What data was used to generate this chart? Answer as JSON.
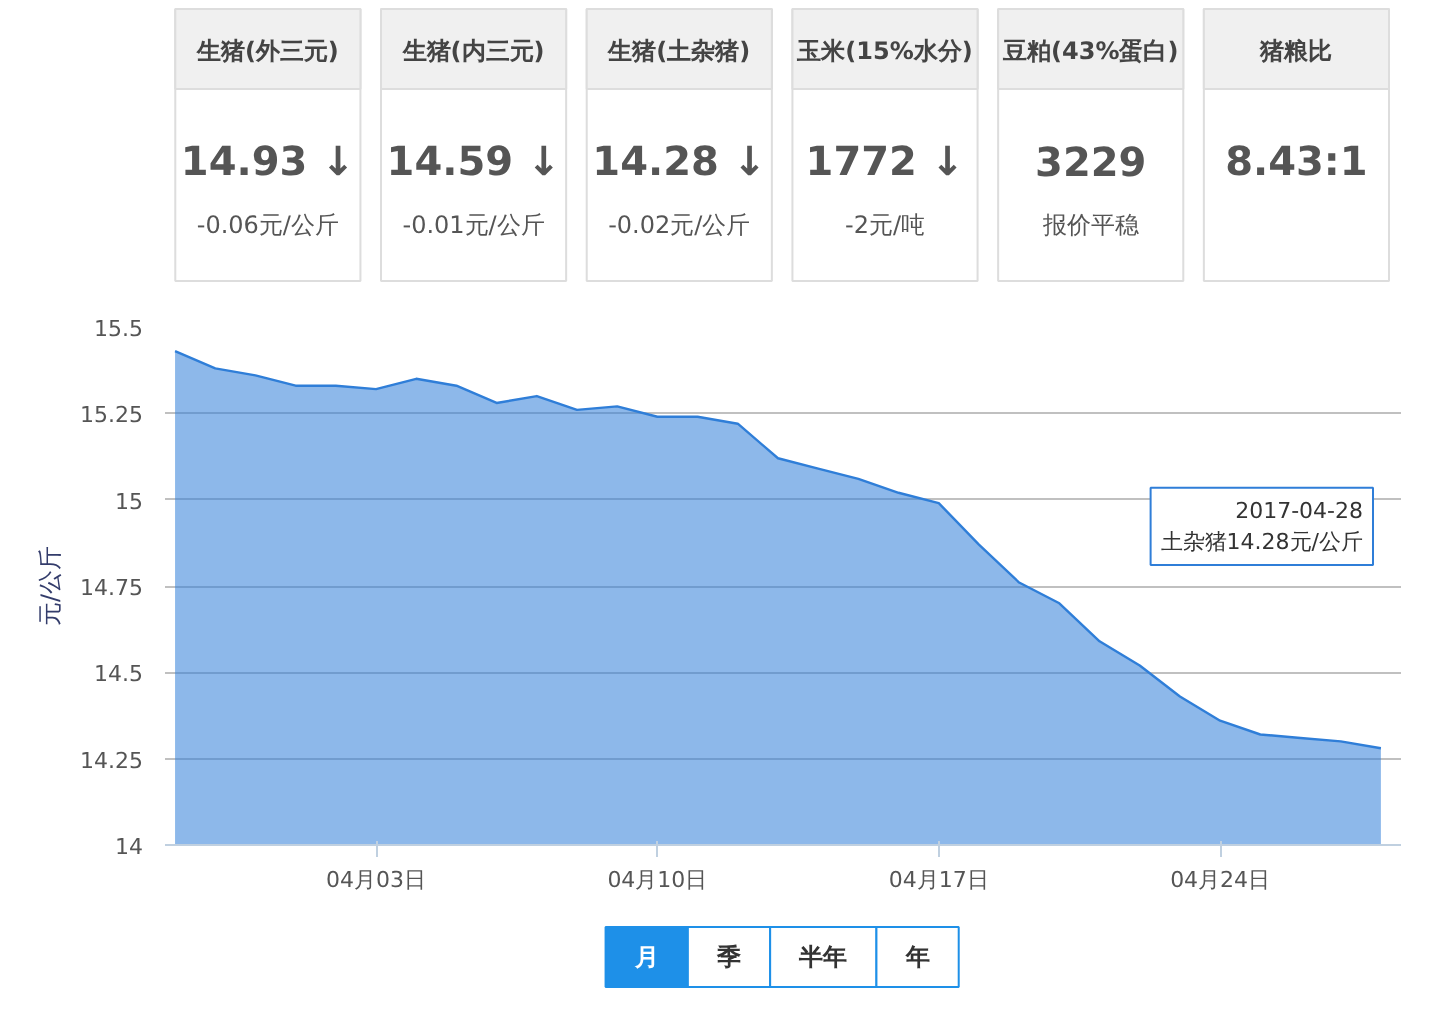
{
  "chart_data": [
    {
      "type": "other",
      "categories": [
        "生猪(外三元)",
        "生猪(内三元)",
        "生猪(土杂猪)",
        "玉米(15%水分)",
        "豆粕(43%蛋白)",
        "猪粮比"
      ],
      "value_labels": [
        "14.93 ↓",
        "14.59 ↓",
        "14.28 ↓",
        "1772 ↓",
        "3229",
        "8.43:1"
      ],
      "annotations": [
        "-0.06元/公斤",
        "-0.01元/公斤",
        "-0.02元/公斤",
        "-2元/吨",
        "报价平稳",
        null
      ]
    },
    {
      "type": "area",
      "ylabel": "元/公斤",
      "x": [
        "2017-03-29",
        "2017-03-30",
        "2017-03-31",
        "2017-04-01",
        "2017-04-02",
        "2017-04-03",
        "2017-04-04",
        "2017-04-05",
        "2017-04-06",
        "2017-04-07",
        "2017-04-08",
        "2017-04-09",
        "2017-04-10",
        "2017-04-11",
        "2017-04-12",
        "2017-04-13",
        "2017-04-14",
        "2017-04-15",
        "2017-04-16",
        "2017-04-17",
        "2017-04-18",
        "2017-04-19",
        "2017-04-20",
        "2017-04-21",
        "2017-04-22",
        "2017-04-23",
        "2017-04-24",
        "2017-04-25",
        "2017-04-26",
        "2017-04-27",
        "2017-04-28"
      ],
      "series": [
        {
          "color": "#2f7ed8",
          "values": [
            15.43,
            15.38,
            15.36,
            15.33,
            15.33,
            15.32,
            15.35,
            15.33,
            15.28,
            15.3,
            15.26,
            15.27,
            15.24,
            15.24,
            15.22,
            15.12,
            15.09,
            15.06,
            15.02,
            14.99,
            14.87,
            14.76,
            14.7,
            14.59,
            14.52,
            14.43,
            14.36,
            14.32,
            14.31,
            14.3,
            14.28
          ]
        }
      ],
      "ylim": [
        14,
        15.5
      ],
      "yticks": [
        14,
        14.25,
        14.5,
        14.75,
        15,
        15.25,
        15.5
      ],
      "xlim": [
        "2017-03-28T18:00",
        "2017-04-28T12:00"
      ],
      "xticks": [
        {
          "value": "2017-04-03",
          "label": "04月03日"
        },
        {
          "value": "2017-04-10",
          "label": "04月10日"
        },
        {
          "value": "2017-04-17",
          "label": "04月17日"
        },
        {
          "value": "2017-04-24",
          "label": "04月24日"
        }
      ],
      "grid": "y",
      "marker": "none",
      "annotations": [
        "2017-04-28\n土杂猪14.28元/公斤",
        "月",
        "季",
        "半年",
        "年"
      ]
    }
  ]
}
